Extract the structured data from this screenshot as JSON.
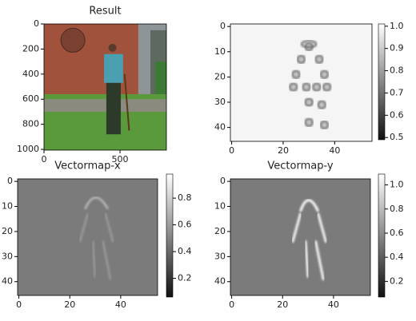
{
  "chart_data": [
    {
      "type": "image",
      "title": "Result",
      "xlim": [
        0,
        805
      ],
      "ylim": [
        0,
        1006
      ],
      "xticks": [
        0,
        500
      ],
      "yticks": [
        0,
        200,
        400,
        600,
        800,
        1000
      ]
    },
    {
      "type": "heatmap",
      "xlim": [
        -0.5,
        54.5
      ],
      "ylim": [
        -1,
        45.5
      ],
      "xticks": [
        0,
        20,
        40
      ],
      "yticks": [
        0,
        10,
        20,
        30,
        40
      ],
      "clim": [
        0.49,
        1.01
      ],
      "cticks": [
        {
          "value": 1,
          "label": "1.0"
        },
        0.9,
        0.8,
        0.7,
        0.6,
        0.5
      ]
    },
    {
      "type": "vectormap",
      "title": "Vectormap-x",
      "xlim": [
        -0.5,
        54.5
      ],
      "ylim": [
        -1,
        45.5
      ],
      "xticks": [
        0,
        20,
        40
      ],
      "yticks": [
        0,
        10,
        20,
        30,
        40
      ],
      "clim": [
        0.06,
        0.98
      ],
      "cticks": [
        0.8,
        0.6,
        0.4,
        0.2
      ]
    },
    {
      "type": "vectormap",
      "title": "Vectormap-y",
      "xlim": [
        -0.5,
        54.5
      ],
      "ylim": [
        -1,
        45.5
      ],
      "xticks": [
        0,
        20,
        40
      ],
      "yticks": [
        0,
        10,
        20,
        30,
        40
      ],
      "clim": [
        0.07,
        1.09
      ],
      "cticks": [
        {
          "value": 1,
          "label": "1.0"
        },
        0.8,
        0.6,
        0.4,
        0.2
      ]
    }
  ]
}
